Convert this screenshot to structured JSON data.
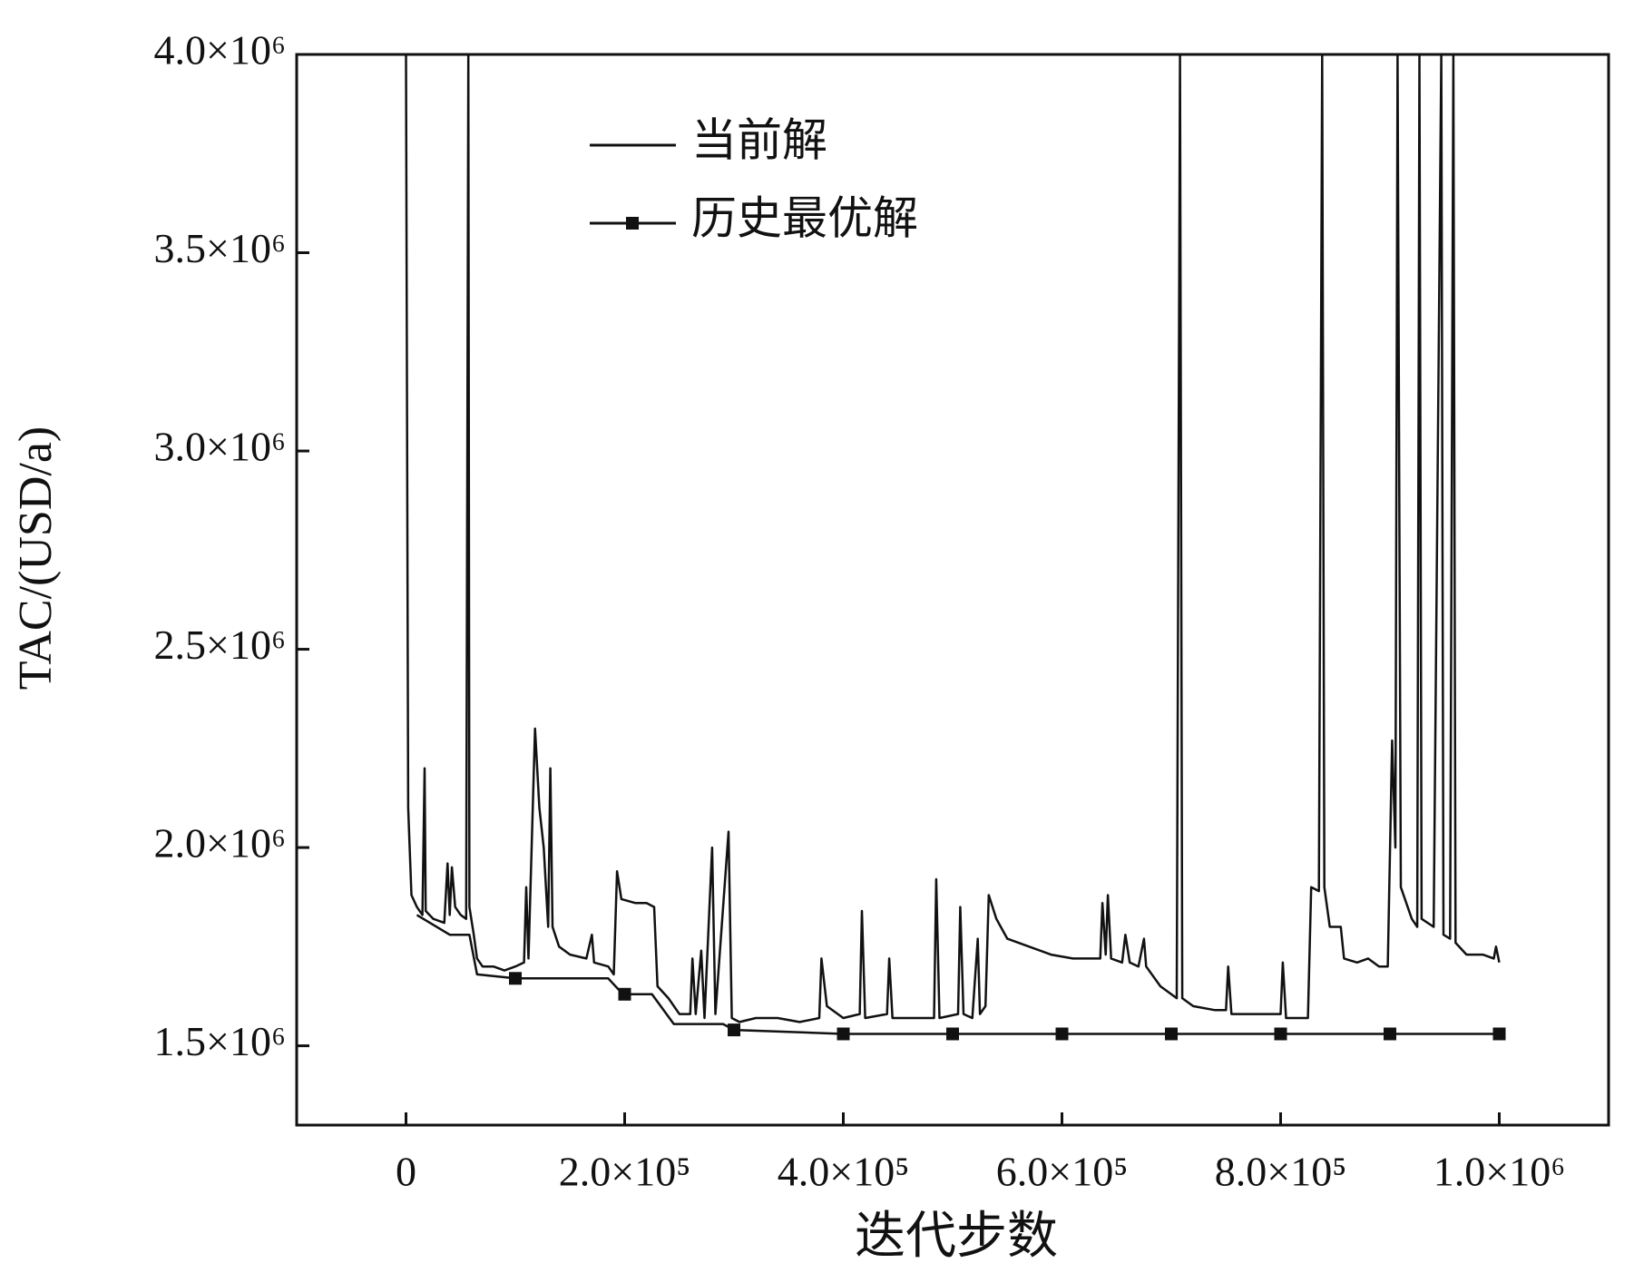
{
  "chart_data": {
    "type": "line",
    "xlabel": "迭代步数",
    "ylabel": "TAC/(USD/a)",
    "xlim": [
      -100000,
      1100000
    ],
    "ylim": [
      1300000,
      4000000
    ],
    "xticks": [
      0,
      {
        "value": 200000,
        "label": "2.0×10⁵"
      },
      {
        "value": 400000,
        "label": "4.0×10⁵"
      },
      {
        "value": 600000,
        "label": "6.0×10⁵"
      },
      {
        "value": 800000,
        "label": "8.0×10⁵"
      },
      {
        "value": 1000000,
        "label": "1.0×10⁶"
      }
    ],
    "yticks": [
      {
        "value": 1500000,
        "label": "1.5×10⁶"
      },
      {
        "value": 2000000,
        "label": "2.0×10⁶"
      },
      {
        "value": 2500000,
        "label": "2.5×10⁶"
      },
      {
        "value": 3000000,
        "label": "3.0×10⁶"
      },
      {
        "value": 3500000,
        "label": "3.5×10⁶"
      },
      {
        "value": 4000000,
        "label": "4.0×10⁶"
      }
    ],
    "series": [
      {
        "name": "当前解",
        "color": "#111111",
        "x": [
          0,
          2000,
          5000,
          10000,
          15000,
          17000,
          18000,
          25000,
          35000,
          38000,
          40000,
          42000,
          45000,
          50000,
          55000,
          57000,
          58000,
          62000,
          65000,
          70000,
          80000,
          90000,
          100000,
          108000,
          110000,
          112000,
          118000,
          122000,
          126000,
          130000,
          132000,
          134000,
          140000,
          150000,
          165000,
          170000,
          172000,
          185000,
          190000,
          193000,
          197000,
          210000,
          220000,
          227000,
          230000,
          240000,
          250000,
          260000,
          262000,
          265000,
          270000,
          273000,
          280000,
          283000,
          295000,
          298000,
          305000,
          320000,
          340000,
          360000,
          378000,
          380000,
          385000,
          400000,
          415000,
          417000,
          420000,
          440000,
          442000,
          445000,
          470000,
          483000,
          485000,
          488000,
          505000,
          507000,
          510000,
          518000,
          523000,
          525000,
          530000,
          533000,
          540000,
          550000,
          570000,
          590000,
          610000,
          635000,
          637000,
          640000,
          642000,
          645000,
          655000,
          658000,
          662000,
          670000,
          675000,
          677000,
          690000,
          700000,
          705000,
          708000,
          710000,
          720000,
          740000,
          750000,
          752000,
          755000,
          780000,
          800000,
          802000,
          805000,
          825000,
          828000,
          835000,
          838000,
          840000,
          845000,
          855000,
          858000,
          870000,
          880000,
          890000,
          898000,
          902000,
          905000,
          907000,
          910000,
          920000,
          925000,
          927000,
          929000,
          940000,
          947000,
          949000,
          955000,
          958000,
          960000,
          970000,
          985000,
          995000,
          997000,
          1000000
        ],
        "values": [
          4000000,
          2100000,
          1880000,
          1850000,
          1830000,
          2200000,
          1840000,
          1820000,
          1810000,
          1960000,
          1830000,
          1950000,
          1850000,
          1830000,
          1820000,
          4000000,
          1850000,
          1780000,
          1720000,
          1700000,
          1700000,
          1690000,
          1700000,
          1710000,
          1900000,
          1720000,
          2300000,
          2100000,
          2000000,
          1800000,
          2200000,
          1800000,
          1750000,
          1730000,
          1720000,
          1780000,
          1710000,
          1700000,
          1680000,
          1940000,
          1870000,
          1860000,
          1860000,
          1850000,
          1650000,
          1620000,
          1580000,
          1580000,
          1720000,
          1580000,
          1740000,
          1570000,
          2000000,
          1580000,
          2040000,
          1570000,
          1560000,
          1570000,
          1570000,
          1560000,
          1570000,
          1720000,
          1600000,
          1570000,
          1580000,
          1840000,
          1570000,
          1580000,
          1720000,
          1570000,
          1570000,
          1570000,
          1920000,
          1570000,
          1580000,
          1850000,
          1580000,
          1570000,
          1770000,
          1580000,
          1600000,
          1880000,
          1820000,
          1770000,
          1750000,
          1730000,
          1720000,
          1720000,
          1860000,
          1730000,
          1880000,
          1720000,
          1710000,
          1780000,
          1710000,
          1700000,
          1770000,
          1700000,
          1650000,
          1630000,
          1620000,
          4000000,
          1620000,
          1600000,
          1590000,
          1590000,
          1700000,
          1580000,
          1580000,
          1580000,
          1710000,
          1570000,
          1570000,
          1900000,
          1890000,
          4000000,
          1900000,
          1800000,
          1800000,
          1720000,
          1710000,
          1720000,
          1700000,
          1700000,
          2270000,
          2000000,
          4000000,
          1900000,
          1820000,
          1800000,
          4000000,
          1820000,
          1800000,
          4000000,
          1780000,
          1770000,
          4000000,
          1760000,
          1730000,
          1730000,
          1720000,
          1750000,
          1710000
        ]
      },
      {
        "name": "历史最优解",
        "color": "#111111",
        "x": [
          10000,
          40000,
          58000,
          65000,
          100000,
          185000,
          195000,
          200000,
          225000,
          245000,
          290000,
          300000,
          400000,
          500000,
          600000,
          700000,
          800000,
          900000,
          1000000
        ],
        "values": [
          1830000,
          1780000,
          1780000,
          1680000,
          1670000,
          1670000,
          1640000,
          1630000,
          1630000,
          1555000,
          1555000,
          1540000,
          1530000,
          1530000,
          1530000,
          1530000,
          1530000,
          1530000,
          1530000
        ]
      }
    ]
  }
}
